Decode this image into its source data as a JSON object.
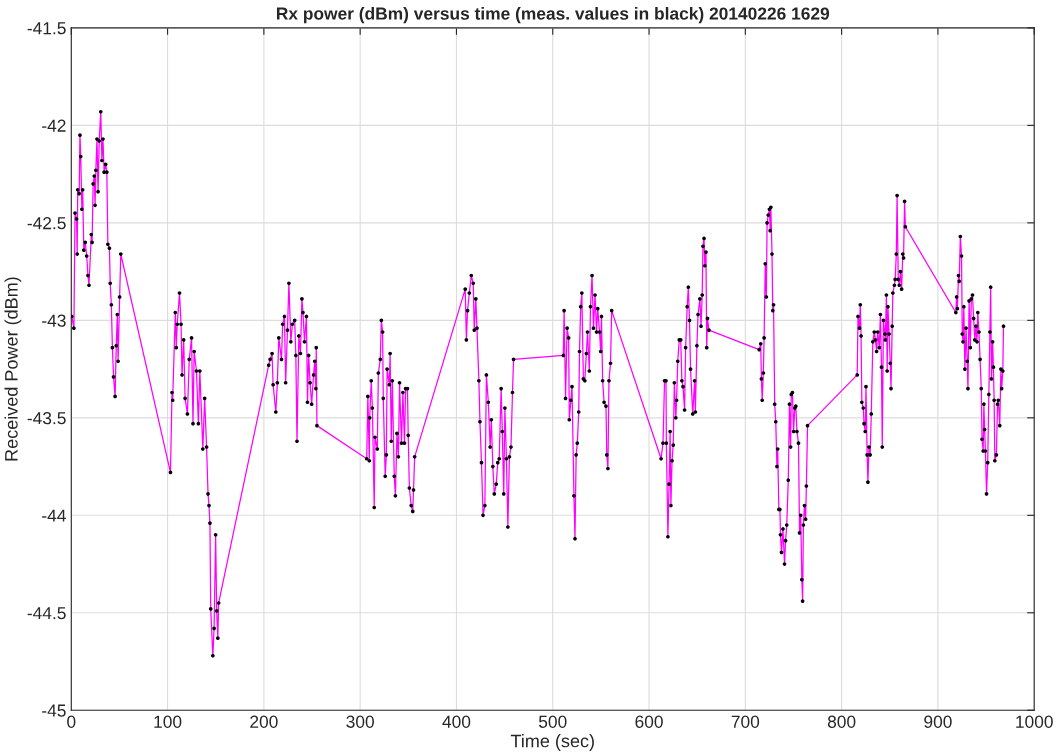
{
  "chart_data": {
    "type": "line",
    "title": "Rx power (dBm) versus time (meas. values in black) 20140226 1629",
    "xlabel": "Time (sec)",
    "ylabel": "Received Power (dBm)",
    "x": [
      0.5,
      2.7,
      3.9,
      5.5,
      6.1,
      6.7,
      8.2,
      9,
      9.8,
      11,
      11.8,
      13,
      14.5,
      16,
      17.3,
      18.4,
      20.8,
      21.6,
      22.7,
      23.9,
      24.7,
      25.5,
      26.7,
      27.8,
      29,
      30.6,
      31.8,
      32.9,
      34.1,
      35.7,
      36.9,
      38,
      39.6,
      40.4,
      41.6,
      42.7,
      43.9,
      45.5,
      46.7,
      47.8,
      48.6,
      50.2,
      51.4,
      103,
      104.6,
      105.3,
      108,
      109,
      110,
      112.4,
      114,
      115,
      116.7,
      118.2,
      120.6,
      122.5,
      124.9,
      126.4,
      127.6,
      130,
      132,
      133.5,
      136.6,
      138.5,
      140.5,
      142,
      143,
      144,
      144.8,
      147,
      148.3,
      149.9,
      151,
      152.2,
      153,
      205,
      206.5,
      208.5,
      209.6,
      212.4,
      214,
      215.5,
      218.3,
      219.5,
      221.4,
      222.6,
      224.5,
      226,
      228,
      229.6,
      232,
      233.2,
      234.4,
      236.3,
      238,
      239.5,
      240.6,
      242.2,
      244.2,
      245.3,
      246.5,
      248,
      249.6,
      251.6,
      252.8,
      254,
      254.4,
      255.1,
      306.8,
      308,
      309.5,
      309.9,
      311.5,
      312.7,
      314.6,
      315.4,
      317.8,
      318.9,
      320.9,
      322,
      323.3,
      324,
      326,
      327.2,
      328,
      330.3,
      331.1,
      332.3,
      333.4,
      335.4,
      336.6,
      338.2,
      339.7,
      340.9,
      342.9,
      344.4,
      346,
      347.2,
      349.1,
      349.9,
      351.1,
      353,
      354.6,
      355.4,
      356.6,
      409.1,
      410.3,
      411.5,
      413.4,
      415.4,
      417.4,
      418.5,
      420.1,
      421.3,
      423.3,
      424.4,
      426,
      427.6,
      429.5,
      431.1,
      433.1,
      435,
      436.2,
      437.8,
      439.3,
      441.3,
      442.9,
      444.4,
      446.4,
      447.6,
      449.1,
      450.3,
      451.9,
      453.4,
      455,
      456.6,
      458.2,
      459.3,
      511,
      511.8,
      513.3,
      514.9,
      516.5,
      517.2,
      518.8,
      520,
      522,
      523.1,
      524.3,
      525.5,
      527,
      527.8,
      529,
      530.2,
      531.8,
      533.3,
      534.9,
      536.1,
      538,
      539.2,
      540.8,
      542.3,
      543.9,
      545.5,
      546.7,
      548.6,
      549.8,
      550.6,
      551.8,
      553.3,
      555.3,
      556.1,
      557.3,
      558.4,
      560,
      561.2,
      612.5,
      614.5,
      616.1,
      617.6,
      618,
      619.6,
      620.8,
      621.9,
      622.7,
      623.9,
      625.1,
      626.3,
      627.8,
      628.6,
      629.8,
      631.4,
      632.9,
      634.1,
      635.3,
      636.9,
      638,
      639.6,
      640.8,
      642,
      643.1,
      645.4,
      647.3,
      648.1,
      649.7,
      650.9,
      652.8,
      654,
      655.2,
      656,
      657.1,
      657.9,
      659.1,
      659.9,
      660.7,
      662.2,
      714.4,
      716,
      716.7,
      717.5,
      718.7,
      719.5,
      720.7,
      721.8,
      722.6,
      723.8,
      725,
      725.8,
      726.5,
      727.7,
      728.5,
      729.3,
      730.5,
      731.6,
      732.8,
      733.6,
      734.8,
      735.9,
      736.5,
      737.5,
      739.1,
      740.7,
      741.8,
      743,
      744.6,
      745.8,
      747,
      747.7,
      748.9,
      750.1,
      751.3,
      752.4,
      753.6,
      755.2,
      756.3,
      757.5,
      758.7,
      759.5,
      760.3,
      761.4,
      762.6,
      763.4,
      764.6,
      816.2,
      817,
      818.6,
      819.4,
      820.2,
      821,
      822.5,
      823.3,
      824.5,
      825.3,
      826.5,
      827.3,
      828.4,
      829.6,
      830.8,
      832.4,
      833.9,
      835.1,
      836.3,
      837.5,
      839.1,
      840.3,
      841.4,
      842.2,
      843.4,
      845,
      845.4,
      846.5,
      847.3,
      848.1,
      849.3,
      850.5,
      851.3,
      852.5,
      853.2,
      854.8,
      855.6,
      856.8,
      857.6,
      858.8,
      859.9,
      861.1,
      862.3,
      863.5,
      864.3,
      865.4,
      866.2,
      918.6,
      919.4,
      920.2,
      921.4,
      922.1,
      923.3,
      924.5,
      925.3,
      926.1,
      926.9,
      928,
      929.2,
      930.4,
      931.2,
      932.4,
      933.6,
      934.7,
      935.9,
      937.1,
      938.3,
      939.5,
      940.6,
      941.4,
      942.6,
      943.8,
      945,
      945.8,
      947,
      947.7,
      948.5,
      949.3,
      950.5,
      951.7,
      952.9,
      954,
      954.8,
      955.6,
      956.8,
      957.6,
      958.4,
      959.1,
      960.7,
      961.9,
      962.7,
      964.2,
      965.4,
      966.2,
      967.4,
      968.1
    ],
    "series": [
      {
        "color": "#ff00ff",
        "values": [
          -42.98,
          -43.04,
          -42.45,
          -42.48,
          -42.66,
          -42.33,
          -42.35,
          -42.05,
          -42.16,
          -42.43,
          -42.33,
          -42.64,
          -42.6,
          -42.67,
          -42.77,
          -42.82,
          -42.56,
          -42.6,
          -42.3,
          -42.26,
          -42.41,
          -42.23,
          -42.07,
          -42.34,
          -42.08,
          -41.93,
          -42.18,
          -42.07,
          -42.24,
          -42.2,
          -42.24,
          -42.61,
          -42.63,
          -42.81,
          -42.92,
          -43.14,
          -43.29,
          -43.39,
          -43.13,
          -42.97,
          -43.21,
          -42.88,
          -42.66,
          -43.78,
          -43.37,
          -43.41,
          -42.96,
          -43.14,
          -43.02,
          -42.86,
          -43.02,
          -43.28,
          -43.1,
          -43.4,
          -43.48,
          -43.2,
          -43.09,
          -43.53,
          -43.16,
          -43.26,
          -43.53,
          -43.26,
          -43.66,
          -43.4,
          -43.65,
          -43.89,
          -43.95,
          -44.04,
          -44.48,
          -44.72,
          -44.58,
          -44.1,
          -44.49,
          -44.63,
          -44.45,
          -43.23,
          -43.2,
          -43.17,
          -43.33,
          -43.47,
          -43.32,
          -43.09,
          -43.2,
          -43.02,
          -42.98,
          -43.32,
          -43.05,
          -42.81,
          -43.11,
          -43.02,
          -43,
          -43.18,
          -43.62,
          -43.08,
          -43.17,
          -42.89,
          -42.96,
          -43.11,
          -42.98,
          -43.42,
          -43.18,
          -43.32,
          -43.43,
          -43.28,
          -43.21,
          -43.35,
          -43.14,
          -43.54,
          -43.71,
          -43.39,
          -43.72,
          -43.5,
          -43.31,
          -43.45,
          -43.96,
          -43.6,
          -43.66,
          -43.27,
          -43.2,
          -43,
          -43.06,
          -43.4,
          -43.8,
          -43.69,
          -43.25,
          -43.33,
          -43.17,
          -43.62,
          -43.31,
          -43.8,
          -43.9,
          -43.58,
          -43.7,
          -43.32,
          -43.63,
          -43.37,
          -43.63,
          -43.35,
          -43.35,
          -43.59,
          -43.86,
          -43.95,
          -43.98,
          -43.87,
          -43.7,
          -42.84,
          -43.1,
          -42.95,
          -42.86,
          -42.77,
          -42.81,
          -43.05,
          -42.89,
          -43.04,
          -43.31,
          -43.52,
          -43.73,
          -44,
          -43.95,
          -43.28,
          -43.42,
          -43.65,
          -43.51,
          -43.75,
          -43.89,
          -43.84,
          -43.73,
          -43.71,
          -43.35,
          -43.57,
          -43.89,
          -43.45,
          -43.71,
          -44.06,
          -43.7,
          -43.65,
          -43.37,
          -43.2,
          -43.18,
          -42.95,
          -43.4,
          -43.04,
          -43.09,
          -43.51,
          -43.41,
          -43.34,
          -43.9,
          -44.12,
          -43.69,
          -43.63,
          -43.47,
          -43.16,
          -42.93,
          -42.86,
          -43.3,
          -43.31,
          -43.17,
          -43.06,
          -43.26,
          -42.93,
          -42.77,
          -43.04,
          -42.87,
          -43.06,
          -42.94,
          -43.06,
          -43.16,
          -42.98,
          -43.31,
          -43.42,
          -43.44,
          -43.69,
          -43.76,
          -43.31,
          -43.22,
          -42.95,
          -43.71,
          -43.63,
          -43.31,
          -43.31,
          -43.63,
          -44.11,
          -43.84,
          -43.57,
          -43.95,
          -43.72,
          -43.64,
          -43.32,
          -43.5,
          -43.41,
          -43.21,
          -43.1,
          -43.1,
          -43.31,
          -43.34,
          -43.46,
          -43.14,
          -42.93,
          -42.83,
          -43,
          -43.25,
          -43.48,
          -43.31,
          -43.47,
          -43.13,
          -42.97,
          -42.89,
          -43.03,
          -42.87,
          -42.62,
          -42.58,
          -42.72,
          -42.65,
          -43.14,
          -42.99,
          -43.05,
          -43.15,
          -43.12,
          -43.3,
          -43.41,
          -43.27,
          -43.09,
          -42.71,
          -42.88,
          -42.5,
          -42.46,
          -42.43,
          -42.54,
          -42.42,
          -42.66,
          -42.95,
          -42.92,
          -43.43,
          -43.52,
          -43.75,
          -43.66,
          -43.97,
          -43.97,
          -44.1,
          -44.19,
          -44.07,
          -44.25,
          -44.13,
          -44.05,
          -43.82,
          -43.43,
          -43.65,
          -43.38,
          -43.37,
          -43.57,
          -43.45,
          -43.44,
          -43.57,
          -43.63,
          -44.09,
          -44,
          -44.33,
          -44.44,
          -44.05,
          -43.95,
          -44.02,
          -43.85,
          -43.54,
          -43.28,
          -42.98,
          -43.04,
          -42.92,
          -43.08,
          -43.42,
          -43.45,
          -43.53,
          -43.57,
          -43.34,
          -43.69,
          -43.83,
          -43.65,
          -43.69,
          -43.48,
          -43.11,
          -43.06,
          -43.1,
          -43.16,
          -43.06,
          -43.14,
          -42.97,
          -43.24,
          -43.65,
          -43,
          -43.07,
          -43.1,
          -42.87,
          -43.26,
          -42.93,
          -43.07,
          -43.22,
          -43.35,
          -43.03,
          -42.86,
          -42.82,
          -42.79,
          -42.66,
          -42.36,
          -42.79,
          -42.82,
          -42.75,
          -42.84,
          -42.66,
          -42.68,
          -42.39,
          -42.52,
          -42.96,
          -42.88,
          -42.94,
          -42.77,
          -42.8,
          -42.57,
          -42.67,
          -43.07,
          -43.11,
          -42.93,
          -43.25,
          -43.04,
          -43.21,
          -43.35,
          -42.9,
          -43.14,
          -42.89,
          -42.87,
          -42.99,
          -43.1,
          -43.03,
          -43.11,
          -42.96,
          -43.06,
          -43.2,
          -43.35,
          -43.61,
          -43.67,
          -43.43,
          -43.56,
          -43.67,
          -43.89,
          -43.73,
          -43.38,
          -43.06,
          -42.83,
          -43.3,
          -43.11,
          -43.24,
          -43.41,
          -43.72,
          -43.69,
          -43.43,
          -43.41,
          -43.54,
          -43.25,
          -43.35,
          -43.26,
          -43.03
        ]
      },
      {
        "type": "scatter",
        "color": "#000000",
        "values": [
          -42.98,
          -43.04,
          -42.45,
          -42.48,
          -42.66,
          -42.33,
          -42.35,
          -42.05,
          -42.16,
          -42.43,
          -42.33,
          -42.64,
          -42.6,
          -42.67,
          -42.77,
          -42.82,
          -42.56,
          -42.6,
          -42.3,
          -42.26,
          -42.41,
          -42.23,
          -42.07,
          -42.34,
          -42.08,
          -41.93,
          -42.18,
          -42.07,
          -42.24,
          -42.2,
          -42.24,
          -42.61,
          -42.63,
          -42.81,
          -42.92,
          -43.14,
          -43.29,
          -43.39,
          -43.13,
          -42.97,
          -43.21,
          -42.88,
          -42.66,
          -43.78,
          -43.37,
          -43.41,
          -42.96,
          -43.14,
          -43.02,
          -42.86,
          -43.02,
          -43.28,
          -43.1,
          -43.4,
          -43.48,
          -43.2,
          -43.09,
          -43.53,
          -43.16,
          -43.26,
          -43.53,
          -43.26,
          -43.66,
          -43.4,
          -43.65,
          -43.89,
          -43.95,
          -44.04,
          -44.48,
          -44.72,
          -44.58,
          -44.1,
          -44.49,
          -44.63,
          -44.45,
          -43.23,
          -43.2,
          -43.17,
          -43.33,
          -43.47,
          -43.32,
          -43.09,
          -43.2,
          -43.02,
          -42.98,
          -43.32,
          -43.05,
          -42.81,
          -43.11,
          -43.02,
          -43,
          -43.18,
          -43.62,
          -43.08,
          -43.17,
          -42.89,
          -42.96,
          -43.11,
          -42.98,
          -43.42,
          -43.18,
          -43.32,
          -43.43,
          -43.28,
          -43.21,
          -43.35,
          -43.14,
          -43.54,
          -43.71,
          -43.39,
          -43.72,
          -43.5,
          -43.31,
          -43.45,
          -43.96,
          -43.6,
          -43.66,
          -43.27,
          -43.2,
          -43,
          -43.06,
          -43.4,
          -43.8,
          -43.69,
          -43.25,
          -43.33,
          -43.17,
          -43.62,
          -43.31,
          -43.8,
          -43.9,
          -43.58,
          -43.7,
          -43.32,
          -43.63,
          -43.37,
          -43.63,
          -43.35,
          -43.35,
          -43.59,
          -43.86,
          -43.95,
          -43.98,
          -43.87,
          -43.7,
          -42.84,
          -43.1,
          -42.95,
          -42.86,
          -42.77,
          -42.81,
          -43.05,
          -42.89,
          -43.04,
          -43.31,
          -43.52,
          -43.73,
          -44,
          -43.95,
          -43.28,
          -43.42,
          -43.65,
          -43.51,
          -43.75,
          -43.89,
          -43.84,
          -43.73,
          -43.71,
          -43.35,
          -43.57,
          -43.89,
          -43.45,
          -43.71,
          -44.06,
          -43.7,
          -43.65,
          -43.37,
          -43.2,
          -43.18,
          -42.95,
          -43.4,
          -43.04,
          -43.09,
          -43.51,
          -43.41,
          -43.34,
          -43.9,
          -44.12,
          -43.69,
          -43.63,
          -43.47,
          -43.16,
          -42.93,
          -42.86,
          -43.3,
          -43.31,
          -43.17,
          -43.06,
          -43.26,
          -42.93,
          -42.77,
          -43.04,
          -42.87,
          -43.06,
          -42.94,
          -43.06,
          -43.16,
          -42.98,
          -43.31,
          -43.42,
          -43.44,
          -43.69,
          -43.76,
          -43.31,
          -43.22,
          -42.95,
          -43.71,
          -43.63,
          -43.31,
          -43.31,
          -43.63,
          -44.11,
          -43.84,
          -43.57,
          -43.95,
          -43.72,
          -43.64,
          -43.32,
          -43.5,
          -43.41,
          -43.21,
          -43.1,
          -43.1,
          -43.31,
          -43.34,
          -43.46,
          -43.14,
          -42.93,
          -42.83,
          -43,
          -43.25,
          -43.48,
          -43.31,
          -43.47,
          -43.13,
          -42.97,
          -42.89,
          -43.03,
          -42.87,
          -42.62,
          -42.58,
          -42.72,
          -42.65,
          -43.14,
          -42.99,
          -43.05,
          -43.15,
          -43.12,
          -43.3,
          -43.41,
          -43.27,
          -43.09,
          -42.71,
          -42.88,
          -42.5,
          -42.46,
          -42.43,
          -42.54,
          -42.42,
          -42.66,
          -42.95,
          -42.92,
          -43.43,
          -43.52,
          -43.75,
          -43.66,
          -43.97,
          -43.97,
          -44.1,
          -44.19,
          -44.07,
          -44.25,
          -44.13,
          -44.05,
          -43.82,
          -43.43,
          -43.65,
          -43.38,
          -43.37,
          -43.57,
          -43.45,
          -43.44,
          -43.57,
          -43.63,
          -44.09,
          -44,
          -44.33,
          -44.44,
          -44.05,
          -43.95,
          -44.02,
          -43.85,
          -43.54,
          -43.28,
          -42.98,
          -43.04,
          -42.92,
          -43.08,
          -43.42,
          -43.45,
          -43.53,
          -43.57,
          -43.34,
          -43.69,
          -43.83,
          -43.65,
          -43.69,
          -43.48,
          -43.11,
          -43.06,
          -43.1,
          -43.16,
          -43.06,
          -43.14,
          -42.97,
          -43.24,
          -43.65,
          -43,
          -43.07,
          -43.1,
          -42.87,
          -43.26,
          -42.93,
          -43.07,
          -43.22,
          -43.35,
          -43.03,
          -42.86,
          -42.82,
          -42.79,
          -42.66,
          -42.36,
          -42.79,
          -42.82,
          -42.75,
          -42.84,
          -42.66,
          -42.68,
          -42.39,
          -42.52,
          -42.96,
          -42.88,
          -42.94,
          -42.77,
          -42.8,
          -42.57,
          -42.67,
          -43.07,
          -43.11,
          -42.93,
          -43.25,
          -43.04,
          -43.21,
          -43.35,
          -42.9,
          -43.14,
          -42.89,
          -42.87,
          -42.99,
          -43.1,
          -43.03,
          -43.11,
          -42.96,
          -43.06,
          -43.2,
          -43.35,
          -43.61,
          -43.67,
          -43.43,
          -43.56,
          -43.67,
          -43.89,
          -43.73,
          -43.38,
          -43.06,
          -42.83,
          -43.3,
          -43.11,
          -43.24,
          -43.41,
          -43.72,
          -43.69,
          -43.43,
          -43.41,
          -43.54,
          -43.25,
          -43.35,
          -43.26,
          -43.03
        ]
      }
    ],
    "xlim": [
      0,
      1000
    ],
    "xticks": [
      0,
      100,
      200,
      300,
      400,
      500,
      600,
      700,
      800,
      900,
      1000
    ],
    "ylim": [
      -45,
      -41.5
    ],
    "yticks": [
      -45,
      -44.5,
      -44,
      -43.5,
      -43,
      -42.5,
      -42,
      -41.5
    ],
    "grid": true,
    "legend": false
  }
}
